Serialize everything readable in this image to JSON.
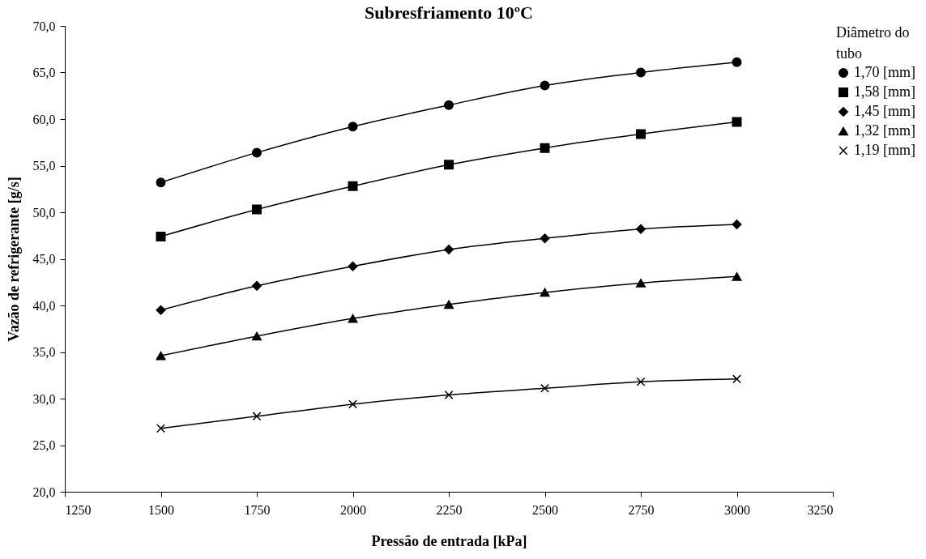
{
  "chart_data": {
    "type": "line",
    "title": "Subresfriamento 10ºC",
    "xlabel": "Pressão de entrada [kPa]",
    "ylabel": "Vazão de refrigerante [g/s]",
    "legend_title": "Diâmetro do tubo",
    "x": [
      1500,
      1750,
      2000,
      2250,
      2500,
      2750,
      3000
    ],
    "series": [
      {
        "name": "1,70 [mm]",
        "color": "#000000",
        "marker": "circle",
        "values": [
          53.2,
          56.4,
          59.2,
          61.5,
          63.6,
          65.0,
          66.1
        ]
      },
      {
        "name": "1,58 [mm]",
        "color": "#000000",
        "marker": "square",
        "values": [
          47.4,
          50.3,
          52.8,
          55.1,
          56.9,
          58.4,
          59.7
        ]
      },
      {
        "name": "1,45 [mm]",
        "color": "#000000",
        "marker": "diamond",
        "values": [
          39.5,
          42.1,
          44.2,
          46.0,
          47.2,
          48.2,
          48.7
        ]
      },
      {
        "name": "1,32 [mm]",
        "color": "#000000",
        "marker": "triangle",
        "values": [
          34.6,
          36.7,
          38.6,
          40.1,
          41.4,
          42.4,
          43.1
        ]
      },
      {
        "name": "1,19 [mm]",
        "color": "#000000",
        "marker": "cross",
        "values": [
          26.8,
          28.1,
          29.4,
          30.4,
          31.1,
          31.8,
          32.1
        ]
      }
    ],
    "xlim": [
      1250,
      3250
    ],
    "xticks": [
      1250,
      1500,
      1750,
      2000,
      2250,
      2500,
      2750,
      3000,
      3250
    ],
    "ylim": [
      20,
      70
    ],
    "yticks": [
      {
        "value": 20,
        "label": "20,0"
      },
      {
        "value": 25,
        "label": "25,0"
      },
      {
        "value": 30,
        "label": "30,0"
      },
      {
        "value": 35,
        "label": "35,0"
      },
      {
        "value": 40,
        "label": "40,0"
      },
      {
        "value": 45,
        "label": "45,0"
      },
      {
        "value": 50,
        "label": "50,0"
      },
      {
        "value": 55,
        "label": "55,0"
      },
      {
        "value": 60,
        "label": "60,0"
      },
      {
        "value": 65,
        "label": "65,0"
      },
      {
        "value": 70,
        "label": "70,0"
      }
    ],
    "grid": false,
    "legend": "right",
    "line_style": "solid"
  }
}
